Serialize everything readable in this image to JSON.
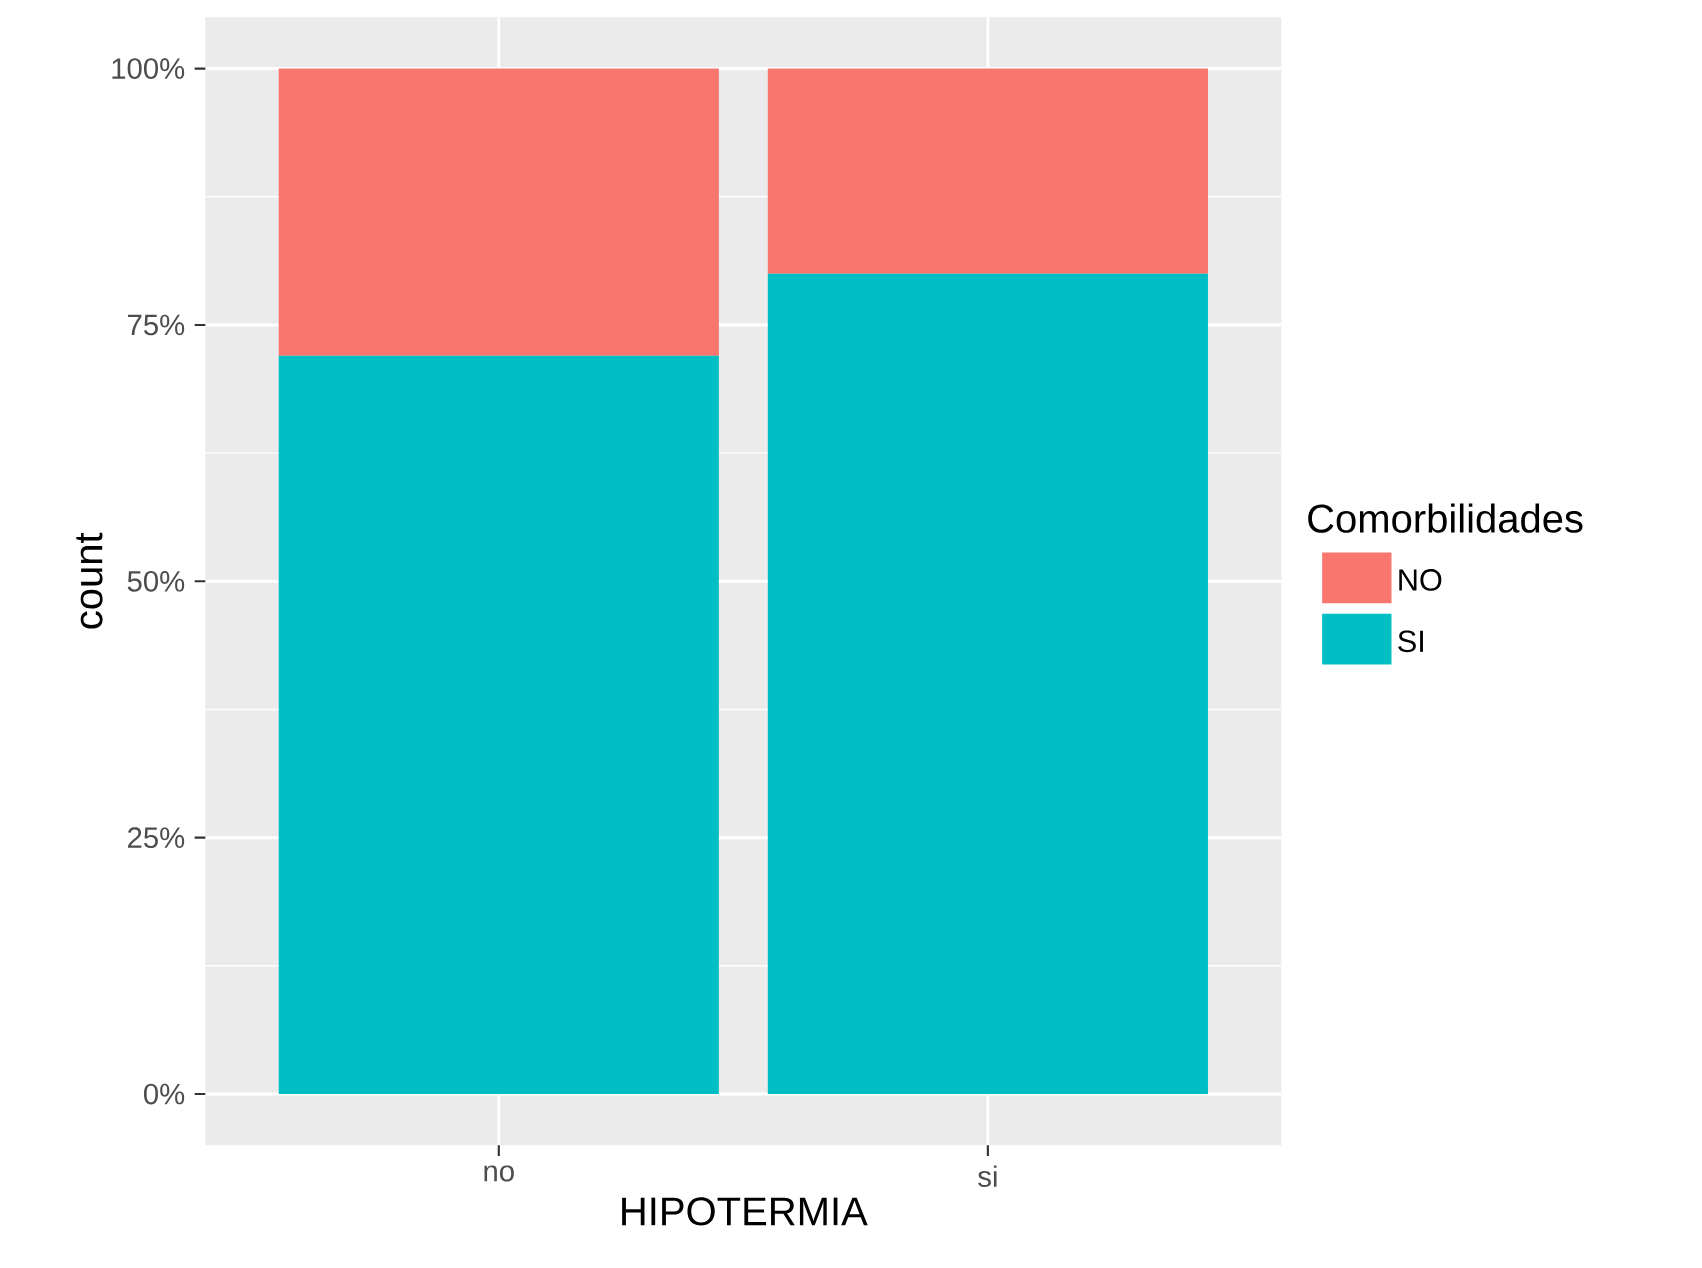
{
  "chart_data": {
    "type": "bar",
    "stacked": true,
    "xlabel": "HIPOTERMIA",
    "ylabel": "count",
    "legend_title": "Comorbilidades",
    "categories": [
      "no",
      "si"
    ],
    "series": [
      {
        "name": "SI",
        "color": "#00bfc4",
        "values": [
          72,
          80
        ]
      },
      {
        "name": "NO",
        "color": "#f8766d",
        "values": [
          28,
          20
        ]
      }
    ],
    "ylim": [
      -5,
      105
    ],
    "yticks": [
      {
        "value": 0,
        "label": "0%"
      },
      {
        "value": 25,
        "label": "25%"
      },
      {
        "value": 50,
        "label": "50%"
      },
      {
        "value": 75,
        "label": "75%"
      },
      {
        "value": 100,
        "label": "100%"
      }
    ],
    "grid": true,
    "legend": "right"
  }
}
